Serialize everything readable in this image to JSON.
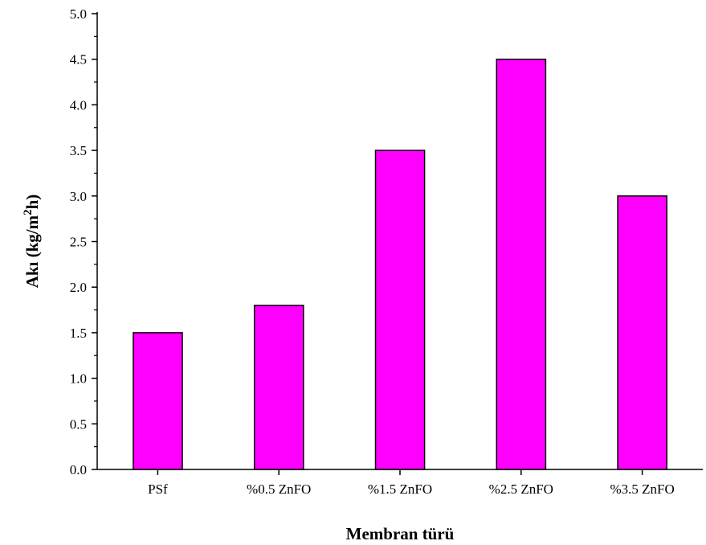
{
  "chart_data": {
    "type": "bar",
    "categories": [
      "PSf",
      "%0.5 ZnFO",
      "%1.5 ZnFO",
      "%2.5 ZnFO",
      "%3.5 ZnFO"
    ],
    "values": [
      1.5,
      1.8,
      3.5,
      4.5,
      3.0
    ],
    "xlabel": "Membran türü",
    "ylabel_main": "Akı (kg/m",
    "ylabel_sup": "2",
    "ylabel_tail": "h)",
    "ylim": [
      0,
      5.0
    ],
    "yticks": [
      "0.0",
      "0.5",
      "1.0",
      "1.5",
      "2.0",
      "2.5",
      "3.0",
      "3.5",
      "4.0",
      "4.5",
      "5.0"
    ],
    "bar_color": "#ff00ff",
    "grid": false,
    "legend": "none"
  }
}
